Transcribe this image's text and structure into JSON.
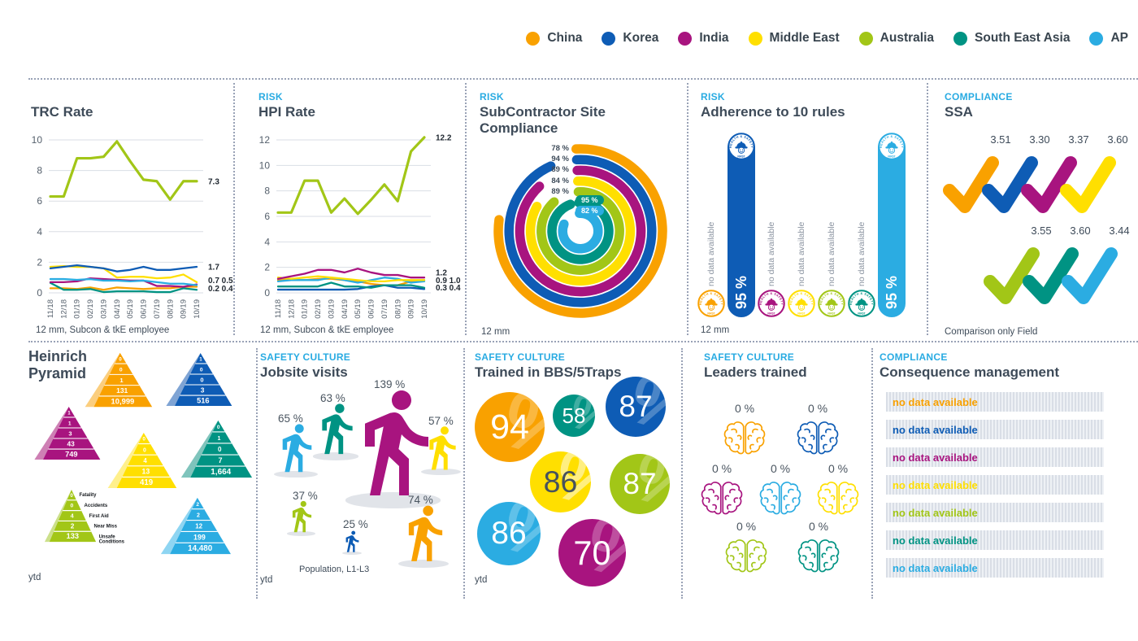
{
  "colors": {
    "china": "#F9A100",
    "korea": "#0E5CB5",
    "india": "#A8147F",
    "middle_east": "#FFDF00",
    "australia": "#A2C617",
    "south_east_asia": "#009383",
    "ap": "#2BACE2",
    "light": {
      "china": "#FBCE7E",
      "korea": "#7FA4D4",
      "india": "#CE7FB4",
      "middle_east": "#FFF08C",
      "australia": "#CCE08B",
      "south_east_asia": "#7FC4BC",
      "ap": "#8ED5F2"
    },
    "label_blue": "#29ABE2",
    "title": "#3E4B59",
    "axis": "#55606C",
    "grid": "#DADEE4",
    "value_dark": "#1F2730"
  },
  "legend": {
    "items": [
      {
        "key": "china",
        "label": "China"
      },
      {
        "key": "korea",
        "label": "Korea"
      },
      {
        "key": "india",
        "label": "India"
      },
      {
        "key": "middle_east",
        "label": "Middle East"
      },
      {
        "key": "australia",
        "label": "Australia"
      },
      {
        "key": "south_east_asia",
        "label": "South East Asia"
      },
      {
        "key": "ap",
        "label": "AP"
      }
    ]
  },
  "panels": {
    "trc": {
      "category": "",
      "title": "TRC Rate",
      "footnote": "12 mm, Subcon & tkE employee"
    },
    "hpi": {
      "category": "RISK",
      "title": "HPI Rate",
      "footnote": "12 mm, Subcon & tkE employee"
    },
    "subcontractor": {
      "category": "RISK",
      "title": "SubContractor Site Compliance",
      "footnote": "12 mm"
    },
    "adherence": {
      "category": "RISK",
      "title": "Adherence to 10 rules",
      "footnote": "12 mm",
      "badge_arc_text": "HEALTH & SAFETY",
      "badge_bottom_text": "FIRST",
      "no_data_text": "no data available"
    },
    "ssa": {
      "category": "COMPLIANCE",
      "title": "SSA",
      "footnote": "Comparison only Field"
    },
    "heinrich": {
      "category": "",
      "title": "Heinrich Pyramid",
      "footnote": "ytd"
    },
    "jobsite": {
      "category": "SAFETY CULTURE",
      "title": "Jobsite visits",
      "footnote": "ytd",
      "footnote2": "Population, L1-L3"
    },
    "bbs": {
      "category": "SAFETY CULTURE",
      "title": "Trained in BBS/5Traps",
      "footnote": "ytd"
    },
    "leaders": {
      "category": "SAFETY CULTURE",
      "title": "Leaders trained"
    },
    "consequence": {
      "category": "COMPLIANCE",
      "title": "Consequence management"
    }
  },
  "chart_data": [
    {
      "id": "trc",
      "type": "line",
      "title": "TRC Rate",
      "ylim": [
        0,
        10
      ],
      "yticks": [
        0,
        2,
        4,
        6,
        8,
        10
      ],
      "x": [
        "11/18",
        "12/18",
        "01/19",
        "02/19",
        "03/19",
        "04/19",
        "05/19",
        "06/19",
        "07/19",
        "08/19",
        "09/19",
        "10/19"
      ],
      "series": [
        {
          "name": "China",
          "key": "china",
          "values": [
            0.3,
            0.3,
            0.25,
            0.35,
            0.2,
            0.35,
            0.3,
            0.25,
            0.3,
            0.3,
            0.4,
            0.4
          ]
        },
        {
          "name": "South East Asia",
          "key": "south_east_asia",
          "values": [
            0.65,
            0.2,
            0.2,
            0.25,
            0.05,
            0.1,
            0.1,
            0.1,
            0.05,
            0.05,
            0.3,
            0.2
          ]
        },
        {
          "name": "India",
          "key": "india",
          "values": [
            0.7,
            0.7,
            0.75,
            0.95,
            0.9,
            0.85,
            0.8,
            0.8,
            0.45,
            0.45,
            0.4,
            0.55
          ]
        },
        {
          "name": "AP",
          "key": "ap",
          "values": [
            0.9,
            0.9,
            0.85,
            0.9,
            0.8,
            0.8,
            0.75,
            0.8,
            0.7,
            0.6,
            0.6,
            0.5
          ]
        },
        {
          "name": "Middle East",
          "key": "middle_east",
          "values": [
            1.7,
            1.75,
            1.7,
            1.7,
            1.6,
            1.0,
            1.05,
            1.05,
            0.95,
            1.0,
            1.2,
            0.7
          ]
        },
        {
          "name": "Korea",
          "key": "korea",
          "values": [
            1.6,
            1.7,
            1.8,
            1.7,
            1.6,
            1.4,
            1.5,
            1.7,
            1.5,
            1.5,
            1.6,
            1.7
          ]
        },
        {
          "name": "Australia",
          "key": "australia",
          "values": [
            6.3,
            6.3,
            8.8,
            8.8,
            8.9,
            9.9,
            8.6,
            7.4,
            7.3,
            6.1,
            7.3,
            7.3
          ]
        }
      ],
      "end_labels": [
        {
          "text": "7.3",
          "v": 7.3
        },
        {
          "text": "1.7",
          "v": 1.7
        },
        {
          "text": "0.7 0.5",
          "v": 0.82
        },
        {
          "text": "0.2 0.4",
          "v": 0.3
        }
      ]
    },
    {
      "id": "hpi",
      "type": "line",
      "title": "HPI Rate",
      "ylim": [
        0,
        12
      ],
      "yticks": [
        0,
        2,
        4,
        6,
        8,
        10,
        12
      ],
      "x": [
        "11/18",
        "12/18",
        "01/19",
        "02/19",
        "03/19",
        "04/19",
        "05/19",
        "06/19",
        "07/19",
        "08/19",
        "09/19",
        "10/19"
      ],
      "series": [
        {
          "name": "China",
          "key": "china",
          "values": [
            1.0,
            1.0,
            1.0,
            1.1,
            1.1,
            1.0,
            0.9,
            0.7,
            0.6,
            0.6,
            0.9,
            1.0
          ]
        },
        {
          "name": "Korea",
          "key": "korea",
          "values": [
            0.25,
            0.25,
            0.25,
            0.25,
            0.25,
            0.25,
            0.3,
            0.5,
            0.6,
            0.4,
            0.4,
            0.3
          ]
        },
        {
          "name": "South East Asia",
          "key": "south_east_asia",
          "values": [
            0.5,
            0.5,
            0.5,
            0.5,
            0.8,
            0.5,
            0.5,
            0.4,
            0.6,
            0.6,
            0.6,
            0.4
          ]
        },
        {
          "name": "AP",
          "key": "ap",
          "values": [
            0.9,
            1.0,
            1.0,
            1.0,
            1.2,
            1.0,
            0.8,
            1.0,
            1.2,
            1.1,
            0.8,
            0.9
          ]
        },
        {
          "name": "Middle East",
          "key": "middle_east",
          "values": [
            1.2,
            1.1,
            1.2,
            1.3,
            1.2,
            1.1,
            1.0,
            0.9,
            0.9,
            1.0,
            1.0,
            1.0
          ]
        },
        {
          "name": "India",
          "key": "india",
          "values": [
            1.1,
            1.3,
            1.5,
            1.8,
            1.8,
            1.6,
            1.9,
            1.6,
            1.4,
            1.4,
            1.2,
            1.2
          ]
        },
        {
          "name": "Australia",
          "key": "australia",
          "values": [
            6.3,
            6.3,
            8.8,
            8.8,
            6.3,
            7.4,
            6.2,
            7.3,
            8.5,
            7.2,
            11.1,
            12.2
          ]
        }
      ],
      "end_labels": [
        {
          "text": "12.2",
          "v": 12.2
        },
        {
          "text": "1.2",
          "v": 1.6
        },
        {
          "text": "0.9 1.0",
          "v": 1.0
        },
        {
          "text": "0.3 0.4",
          "v": 0.42
        }
      ]
    },
    {
      "id": "subcontractor",
      "type": "radial_rings",
      "title": "SubContractor Site Compliance",
      "rings": [
        {
          "name": "China",
          "key": "china",
          "pct": 78,
          "label": "78 %"
        },
        {
          "name": "Korea",
          "key": "korea",
          "pct": 94,
          "label": "94 %"
        },
        {
          "name": "India",
          "key": "india",
          "pct": 89,
          "label": "89 %"
        },
        {
          "name": "Middle East",
          "key": "middle_east",
          "pct": 84,
          "label": "84 %"
        },
        {
          "name": "Australia",
          "key": "australia",
          "pct": 89,
          "label": "89 %"
        },
        {
          "name": "South East Asia",
          "key": "south_east_asia",
          "pct": 95,
          "label": "95 %",
          "pill": true
        },
        {
          "name": "AP",
          "key": "ap",
          "pct": 82,
          "label": "82 %",
          "pill": true
        }
      ]
    },
    {
      "id": "adherence",
      "type": "bar_badges",
      "title": "Adherence to 10 rules",
      "items": [
        {
          "name": "China",
          "key": "china",
          "value": "no data available",
          "bar": false
        },
        {
          "name": "Korea",
          "key": "korea",
          "value": "95 %",
          "bar": true
        },
        {
          "name": "India",
          "key": "india",
          "value": "no data available",
          "bar": false
        },
        {
          "name": "Middle East",
          "key": "middle_east",
          "value": "no data available",
          "bar": false
        },
        {
          "name": "Australia",
          "key": "australia",
          "value": "no data available",
          "bar": false
        },
        {
          "name": "South East Asia",
          "key": "south_east_asia",
          "value": "no data available",
          "bar": false
        },
        {
          "name": "AP",
          "key": "ap",
          "value": "95 %",
          "bar": true
        }
      ]
    },
    {
      "id": "ssa",
      "type": "check_scores",
      "title": "SSA",
      "rows": [
        [
          {
            "name": "China",
            "key": "china",
            "value": "3.51"
          },
          {
            "name": "Korea",
            "key": "korea",
            "value": "3.30"
          },
          {
            "name": "India",
            "key": "india",
            "value": "3.37"
          },
          {
            "name": "Middle East",
            "key": "middle_east",
            "value": "3.60"
          }
        ],
        [
          {
            "name": "Australia",
            "key": "australia",
            "value": "3.55"
          },
          {
            "name": "South East Asia",
            "key": "south_east_asia",
            "value": "3.60"
          },
          {
            "name": "AP",
            "key": "ap",
            "value": "3.44"
          }
        ]
      ]
    },
    {
      "id": "heinrich",
      "type": "pyramids",
      "title": "Heinrich Pyramid",
      "tier_labels": [
        [
          "Fatality"
        ],
        [
          "Accidents"
        ],
        [
          "First Aid"
        ],
        [
          "Near Miss"
        ],
        [
          "Unsafe",
          "Conditions"
        ]
      ],
      "pyramids": [
        {
          "name": "China",
          "key": "china",
          "values": [
            "0",
            "0",
            "1",
            "131",
            "10,999"
          ]
        },
        {
          "name": "Korea",
          "key": "korea",
          "values": [
            "1",
            "0",
            "0",
            "3",
            "516"
          ]
        },
        {
          "name": "India",
          "key": "india",
          "values": [
            "1",
            "1",
            "3",
            "43",
            "749"
          ]
        },
        {
          "name": "Middle East",
          "key": "middle_east",
          "values": [
            "0",
            "0",
            "4",
            "13",
            "419"
          ]
        },
        {
          "name": "South East Asia",
          "key": "south_east_asia",
          "values": [
            "0",
            "1",
            "0",
            "7",
            "1,664"
          ]
        },
        {
          "name": "Australia",
          "key": "australia",
          "values": [
            "0",
            "0",
            "4",
            "2",
            "133"
          ],
          "labeled": true
        },
        {
          "name": "AP",
          "key": "ap",
          "values": [
            "2",
            "2",
            "12",
            "199",
            "14,480"
          ]
        }
      ]
    },
    {
      "id": "jobsite",
      "type": "pictogram_people",
      "title": "Jobsite visits",
      "items": [
        {
          "name": "AP",
          "key": "ap",
          "value": "65 %"
        },
        {
          "name": "South East Asia",
          "key": "south_east_asia",
          "value": "63 %"
        },
        {
          "name": "India",
          "key": "india",
          "value": "139 %"
        },
        {
          "name": "Middle East",
          "key": "middle_east",
          "value": "57 %"
        },
        {
          "name": "Australia",
          "key": "australia",
          "value": "37 %"
        },
        {
          "name": "Korea",
          "key": "korea",
          "value": "25 %"
        },
        {
          "name": "China",
          "key": "china",
          "value": "74 %"
        }
      ]
    },
    {
      "id": "bbs",
      "type": "bubbles",
      "title": "Trained in BBS/5Traps",
      "items": [
        {
          "name": "China",
          "key": "china",
          "value": "94"
        },
        {
          "name": "South East Asia",
          "key": "south_east_asia",
          "value": "58"
        },
        {
          "name": "Korea",
          "key": "korea",
          "value": "87"
        },
        {
          "name": "Middle East",
          "key": "middle_east",
          "value": "86",
          "dark_text": true
        },
        {
          "name": "Australia",
          "key": "australia",
          "value": "87"
        },
        {
          "name": "AP",
          "key": "ap",
          "value": "86"
        },
        {
          "name": "India",
          "key": "india",
          "value": "70"
        }
      ]
    },
    {
      "id": "leaders",
      "type": "icon_grid_brains",
      "title": "Leaders trained",
      "items": [
        {
          "name": "China",
          "key": "china",
          "value": "0 %"
        },
        {
          "name": "Korea",
          "key": "korea",
          "value": "0 %"
        },
        {
          "name": "India",
          "key": "india",
          "value": "0 %"
        },
        {
          "name": "AP",
          "key": "ap",
          "value": "0 %"
        },
        {
          "name": "Middle East",
          "key": "middle_east",
          "value": "0 %"
        },
        {
          "name": "Australia",
          "key": "australia",
          "value": "0 %"
        },
        {
          "name": "South East Asia",
          "key": "south_east_asia",
          "value": "0 %"
        }
      ]
    },
    {
      "id": "consequence",
      "type": "status_rows",
      "title": "Consequence management",
      "items": [
        {
          "name": "China",
          "key": "china",
          "value": "no data available"
        },
        {
          "name": "Korea",
          "key": "korea",
          "value": "no data available"
        },
        {
          "name": "India",
          "key": "india",
          "value": "no data available"
        },
        {
          "name": "Middle East",
          "key": "middle_east",
          "value": "no data available"
        },
        {
          "name": "Australia",
          "key": "australia",
          "value": "no data available"
        },
        {
          "name": "South East Asia",
          "key": "south_east_asia",
          "value": "no data available"
        },
        {
          "name": "AP",
          "key": "ap",
          "value": "no data available"
        }
      ]
    }
  ]
}
